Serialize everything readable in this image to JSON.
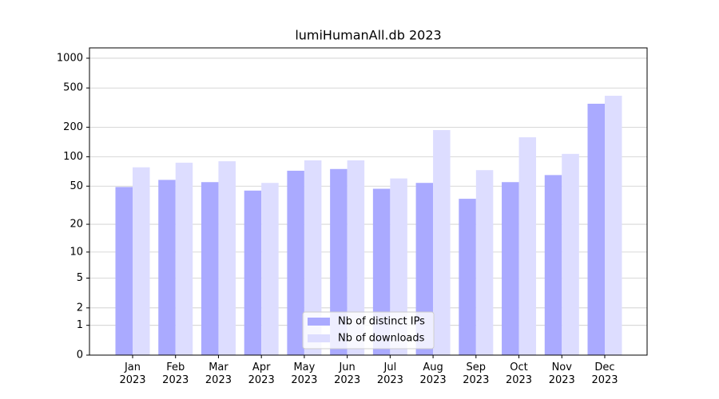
{
  "chart_data": {
    "type": "bar",
    "title": "lumiHumanAll.db 2023",
    "categories": [
      "Jan\n2023",
      "Feb\n2023",
      "Mar\n2023",
      "Apr\n2023",
      "May\n2023",
      "Jun\n2023",
      "Jul\n2023",
      "Aug\n2023",
      "Sep\n2023",
      "Oct\n2023",
      "Nov\n2023",
      "Dec\n2023"
    ],
    "series": [
      {
        "name": "Nb of distinct IPs",
        "color": "#aaaaff",
        "values": [
          49,
          58,
          55,
          45,
          72,
          75,
          47,
          54,
          37,
          55,
          65,
          346
        ]
      },
      {
        "name": "Nb of downloads",
        "color": "#ddddff",
        "values": [
          78,
          87,
          90,
          54,
          92,
          92,
          60,
          187,
          73,
          158,
          107,
          417
        ]
      }
    ],
    "yscale": "log1p",
    "ylim": [
      0,
      1272
    ],
    "yticks": [
      0,
      1,
      2,
      5,
      10,
      20,
      50,
      100,
      200,
      500,
      1000
    ],
    "grid": true,
    "legend": "lower center"
  }
}
